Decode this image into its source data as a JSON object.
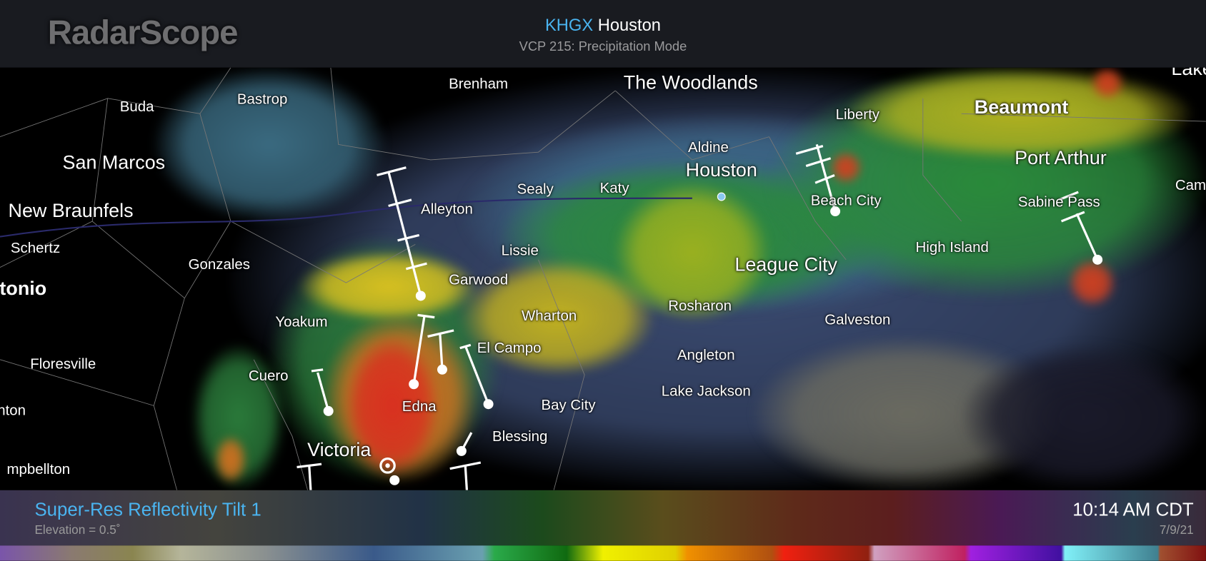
{
  "header": {
    "logo": "RadarScope",
    "site_id": "KHGX",
    "site_name": "Houston",
    "vcp": "VCP 215: Precipitation Mode"
  },
  "map": {
    "cities": [
      {
        "name": "Brenham",
        "size": "normal"
      },
      {
        "name": "The Woodlands",
        "size": "big"
      },
      {
        "name": "Bastrop",
        "size": "normal"
      },
      {
        "name": "Buda",
        "size": "normal"
      },
      {
        "name": "Liberty",
        "size": "normal"
      },
      {
        "name": "Beaumont",
        "size": "bold"
      },
      {
        "name": "Lake",
        "size": "big"
      },
      {
        "name": "Aldine",
        "size": "normal"
      },
      {
        "name": "Houston",
        "size": "big"
      },
      {
        "name": "San Marcos",
        "size": "big"
      },
      {
        "name": "Port Arthur",
        "size": "big"
      },
      {
        "name": "Sealy",
        "size": "normal"
      },
      {
        "name": "Katy",
        "size": "normal"
      },
      {
        "name": "Beach City",
        "size": "normal"
      },
      {
        "name": "Sabine Pass",
        "size": "normal"
      },
      {
        "name": "Cam",
        "size": "normal"
      },
      {
        "name": "Alleyton",
        "size": "normal"
      },
      {
        "name": "New Braunfels",
        "size": "big"
      },
      {
        "name": "Schertz",
        "size": "normal"
      },
      {
        "name": "Lissie",
        "size": "normal"
      },
      {
        "name": "High Island",
        "size": "normal"
      },
      {
        "name": "Gonzales",
        "size": "normal"
      },
      {
        "name": "League City",
        "size": "big"
      },
      {
        "name": "tonio",
        "size": "bold"
      },
      {
        "name": "Garwood",
        "size": "normal"
      },
      {
        "name": "Wharton",
        "size": "normal"
      },
      {
        "name": "Rosharon",
        "size": "normal"
      },
      {
        "name": "Yoakum",
        "size": "normal"
      },
      {
        "name": "Galveston",
        "size": "normal"
      },
      {
        "name": "El Campo",
        "size": "normal"
      },
      {
        "name": "Angleton",
        "size": "normal"
      },
      {
        "name": "Floresville",
        "size": "normal"
      },
      {
        "name": "Cuero",
        "size": "normal"
      },
      {
        "name": "Lake Jackson",
        "size": "normal"
      },
      {
        "name": "nton",
        "size": "normal"
      },
      {
        "name": "Edna",
        "size": "normal"
      },
      {
        "name": "Bay City",
        "size": "normal"
      },
      {
        "name": "Blessing",
        "size": "normal"
      },
      {
        "name": "Victoria",
        "size": "big"
      },
      {
        "name": "mpbellton",
        "size": "normal"
      }
    ]
  },
  "footer": {
    "product": "Super-Res Reflectivity Tilt 1",
    "elevation": "Elevation = 0.5˚",
    "time": "10:14 AM CDT",
    "date": "7/9/21"
  },
  "colors": {
    "accent": "#4ab4f0",
    "header_bg": "#191b20"
  }
}
